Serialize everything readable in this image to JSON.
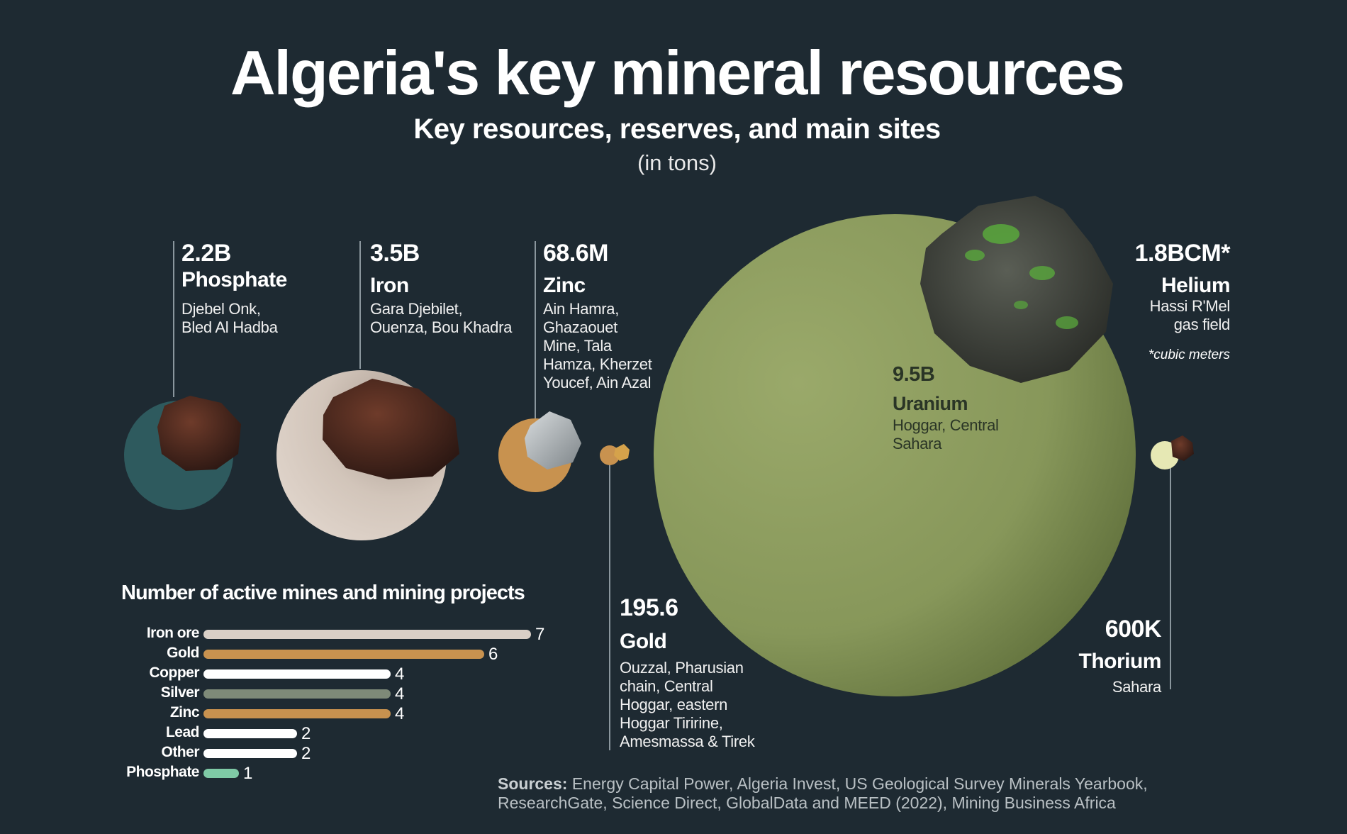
{
  "title": "Algeria's key mineral resources",
  "subtitle": "Key resources, reserves, and main sites",
  "unit_note": "(in tons)",
  "colors": {
    "background": "#1e2a32",
    "phosphate": "#2e5a5e",
    "iron": "#d4c6bb",
    "zinc": "#c8924f",
    "gold": "#c8924f",
    "uranium": "#8d9d5c",
    "thorium": "#e6e8b4",
    "bar_iron_ore": "#d9cfc6",
    "bar_gold": "#c8924f",
    "bar_copper": "#ffffff",
    "bar_silver": "#7e8a78",
    "bar_zinc": "#c8924f",
    "bar_lead": "#ffffff",
    "bar_other": "#ffffff",
    "bar_phosphate": "#7fcaa6"
  },
  "minerals": {
    "phosphate": {
      "value": "2.2B",
      "name": "Phosphate",
      "sites": [
        "Djebel Onk,",
        "Bled Al Hadba"
      ]
    },
    "iron": {
      "value": "3.5B",
      "name": "Iron",
      "sites": [
        "Gara Djebilet,",
        "Ouenza, Bou Khadra"
      ]
    },
    "zinc": {
      "value": "68.6M",
      "name": "Zinc",
      "sites": [
        "Ain Hamra,",
        "Ghazaouet",
        "Mine, Tala",
        "Hamza, Kherzet",
        "Youcef, Ain Azal"
      ]
    },
    "uranium": {
      "value": "9.5B",
      "name": "Uranium",
      "sites": [
        "Hoggar, Central",
        "Sahara"
      ]
    },
    "helium": {
      "value": "1.8BCM*",
      "name": "Helium",
      "sites": [
        "Hassi R'Mel",
        "gas field"
      ],
      "note": "*cubic meters"
    },
    "gold": {
      "value": "195.6",
      "name": "Gold",
      "sites": [
        "Ouzzal, Pharusian",
        "chain, Central",
        "Hoggar, eastern",
        "Hoggar Tiririne,",
        "Amesmassa & Tirek"
      ]
    },
    "thorium": {
      "value": "600K",
      "name": "Thorium",
      "sites": [
        "Sahara"
      ]
    }
  },
  "chart_data": [
    {
      "type": "bubble",
      "unit": "(in tons)",
      "items": [
        {
          "name": "Phosphate",
          "value": 2200000000,
          "label": "2.2B"
        },
        {
          "name": "Iron",
          "value": 3500000000,
          "label": "3.5B"
        },
        {
          "name": "Zinc",
          "value": 68600000,
          "label": "68.6M"
        },
        {
          "name": "Gold",
          "value": 195.6,
          "label": "195.6"
        },
        {
          "name": "Uranium",
          "value": 9500000000,
          "label": "9.5B"
        },
        {
          "name": "Thorium",
          "value": 600000,
          "label": "600K"
        }
      ]
    },
    {
      "type": "bar",
      "orientation": "horizontal",
      "title": "Number of active mines  and mining projects",
      "categories": [
        "Iron ore",
        "Gold",
        "Copper",
        "Silver",
        "Zinc",
        "Lead",
        "Other",
        "Phosphate"
      ],
      "values": [
        7,
        6,
        4,
        4,
        4,
        2,
        2,
        1
      ]
    }
  ],
  "sources": {
    "label": "Sources:",
    "line1": " Energy Capital Power, Algeria Invest, US Geological Survey Minerals Yearbook,",
    "line2": "ResearchGate, Science Direct, GlobalData and MEED (2022), Mining Business Africa"
  }
}
